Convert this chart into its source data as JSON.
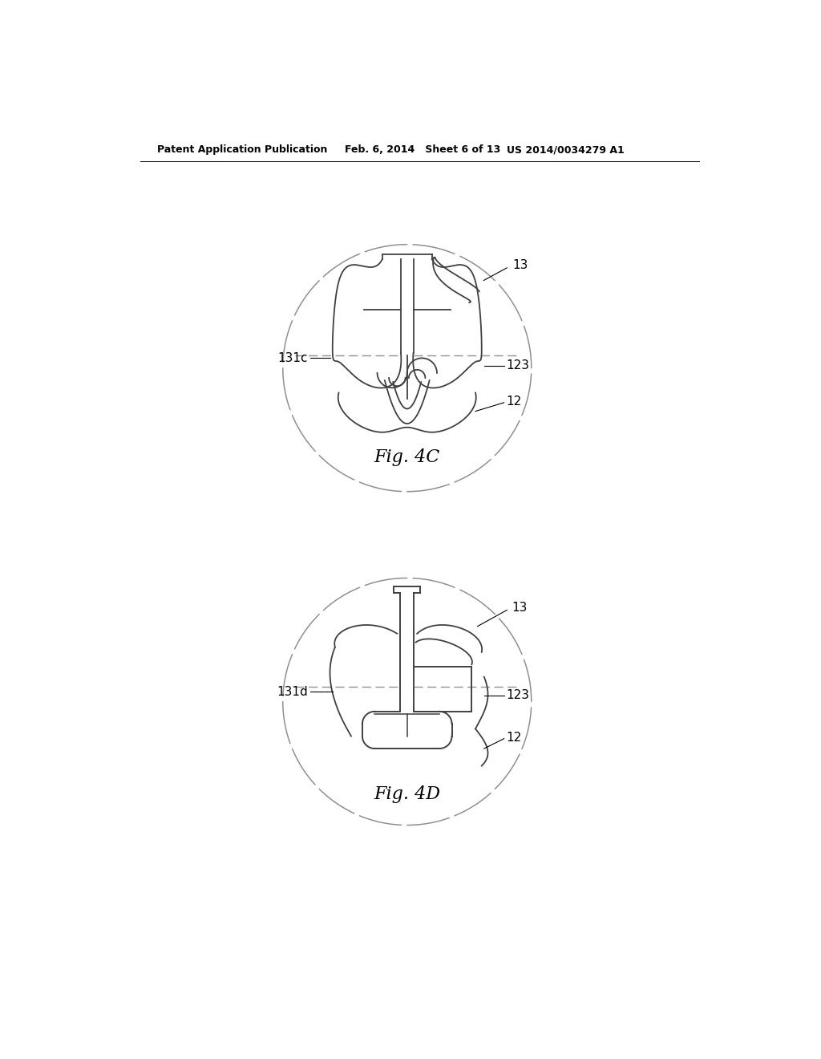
{
  "background_color": "#ffffff",
  "line_color": "#404040",
  "dashed_color": "#909090",
  "header_left": "Patent Application Publication",
  "header_mid": "Feb. 6, 2014   Sheet 6 of 13",
  "header_right": "US 2014/0034279 A1",
  "fig4c_label": "Fig. 4C",
  "fig4d_label": "Fig. 4D",
  "label_13": "13",
  "label_123": "123",
  "label_12": "12",
  "label_131c": "131c",
  "label_131d": "131d"
}
